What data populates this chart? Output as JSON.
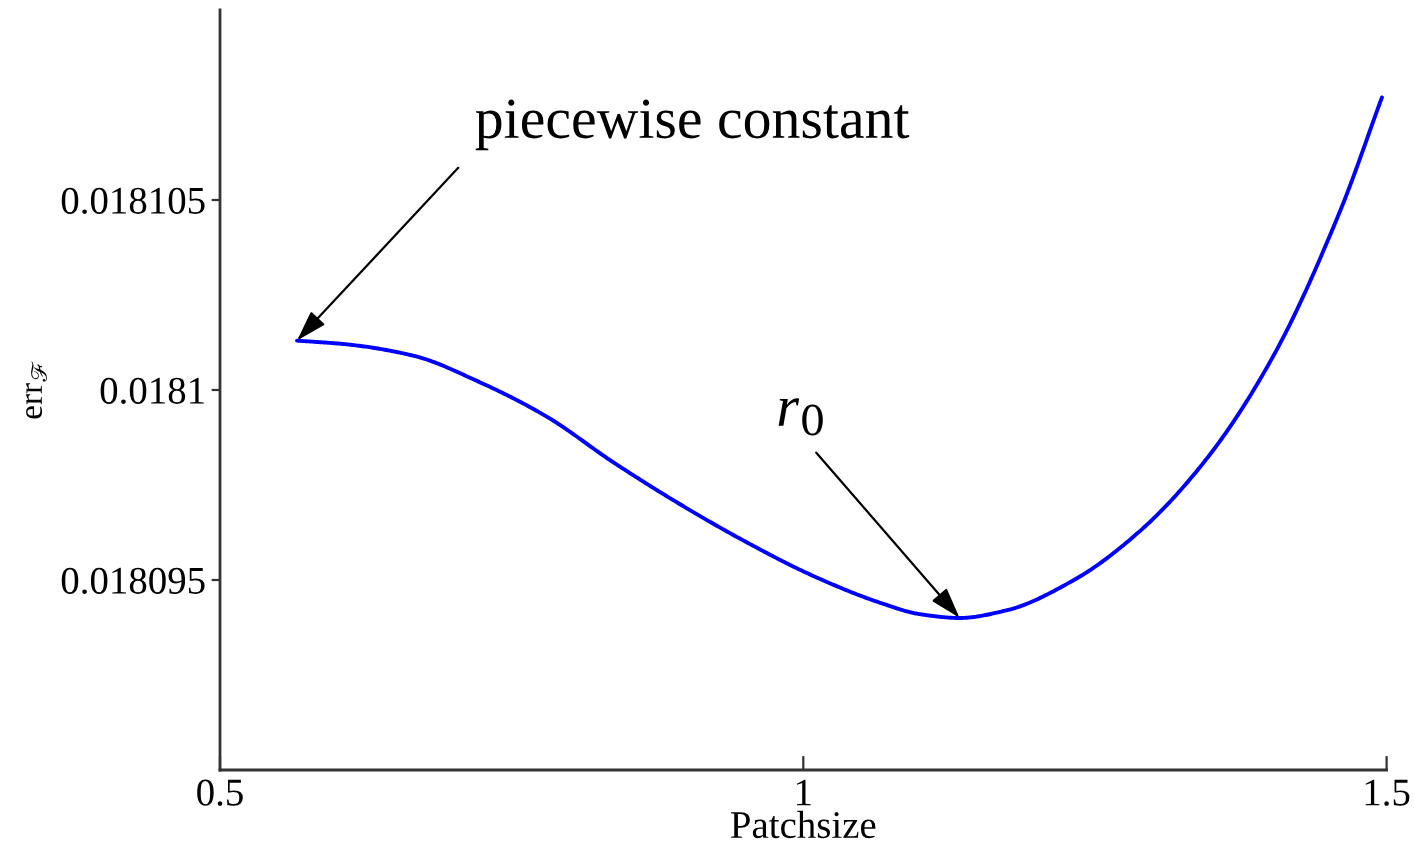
{
  "chart_data": {
    "type": "line",
    "xlabel": "Patchsize",
    "ylabel": "err$_{ℱ}$",
    "x": [
      0.566,
      0.609,
      0.666,
      0.723,
      0.78,
      0.837,
      0.894,
      0.951,
      1.009,
      1.066,
      1.1,
      1.134,
      1.174,
      1.232,
      1.289,
      1.346,
      1.403,
      1.46,
      1.496
    ],
    "series": [
      {
        "color": "#0000ff",
        "values": [
          0.0181013,
          0.0181012,
          0.0181009,
          0.0181002,
          0.0180993,
          0.0180981,
          0.018097,
          0.018096,
          0.0180951,
          0.0180944,
          0.0180941,
          0.018094,
          0.0180942,
          0.018095,
          0.0180963,
          0.0180982,
          0.0181009,
          0.0181047,
          0.0181077
        ]
      }
    ],
    "xlim": [
      0.5,
      1.5
    ],
    "xticks": [
      0.5,
      1,
      1.5
    ],
    "ylim": [
      0.01809,
      0.01811
    ],
    "yticks": [
      0.018095,
      0.0181,
      0.018105
    ],
    "annotations": [
      {
        "text": "piecewise constant",
        "x": 0.566,
        "y": 0.0181013
      },
      {
        "text": "r$_{0}$",
        "x": 1.134,
        "y": 0.018094
      }
    ]
  }
}
